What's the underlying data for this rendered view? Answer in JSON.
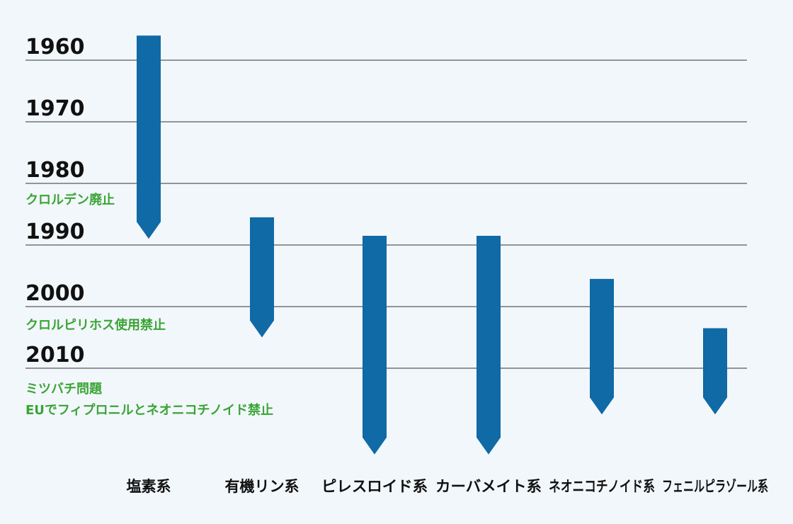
{
  "years": [
    "1960",
    "1970",
    "1980",
    "1990",
    "2000",
    "2010"
  ],
  "notes": {
    "chlordane": "クロルデン廃止",
    "chlorpyrifos": "クロルピリホス使用禁止",
    "bees": "ミツバチ問題",
    "eu": "EUでフィプロニルとネオニコチノイド禁止"
  },
  "categories": [
    {
      "label": "塩素系",
      "start": 1956,
      "end": 1989
    },
    {
      "label": "有機リン系",
      "start": 1985.5,
      "end": 2005
    },
    {
      "label": "ピレスロイド系",
      "start": 1988.5,
      "end": 2024
    },
    {
      "label": "カーバメイト系",
      "start": 1988.5,
      "end": 2024
    },
    {
      "label": "ネオニコチノイド系",
      "start": 1995.5,
      "end": 2017.5
    },
    {
      "label": "フェニルピラゾール系",
      "start": 2003.5,
      "end": 2017.5
    }
  ],
  "colors": {
    "bar": "#0f6aa6",
    "note": "#3aa435",
    "grid": "#333333",
    "background": "#f2f7fb"
  }
}
